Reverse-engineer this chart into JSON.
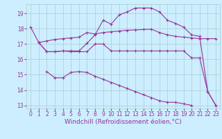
{
  "title": "",
  "xlabel": "Windchill (Refroidissement éolien,°C)",
  "bg_color": "#cceeff",
  "line_color": "#993399",
  "grid_color": "#aacccc",
  "xlim": [
    -0.5,
    23.5
  ],
  "ylim": [
    12.8,
    19.6
  ],
  "yticks": [
    13,
    14,
    15,
    16,
    17,
    18,
    19
  ],
  "xticks": [
    0,
    1,
    2,
    3,
    4,
    5,
    6,
    7,
    8,
    9,
    10,
    11,
    12,
    13,
    14,
    15,
    16,
    17,
    18,
    19,
    20,
    21,
    22,
    23
  ],
  "line1_x": [
    0,
    1,
    2,
    3,
    4,
    5,
    6,
    7,
    8,
    9,
    10,
    11,
    12,
    13,
    14,
    15,
    16,
    17,
    18,
    19,
    20,
    21,
    22,
    23
  ],
  "line1_y": [
    18.1,
    17.1,
    17.2,
    17.3,
    17.35,
    17.4,
    17.45,
    17.75,
    17.65,
    17.75,
    17.8,
    17.85,
    17.9,
    17.92,
    17.95,
    17.97,
    17.75,
    17.6,
    17.5,
    17.45,
    17.4,
    17.35,
    17.35,
    17.35
  ],
  "line2_x": [
    1,
    2,
    3,
    4,
    5,
    6,
    7,
    8,
    9,
    10,
    11,
    12,
    13,
    14,
    15,
    16,
    17,
    18,
    19,
    20,
    21,
    22,
    23
  ],
  "line2_y": [
    17.1,
    16.5,
    16.5,
    16.55,
    16.5,
    16.5,
    16.5,
    17.0,
    17.0,
    16.55,
    16.55,
    16.55,
    16.55,
    16.55,
    16.55,
    16.55,
    16.55,
    16.55,
    16.55,
    16.1,
    16.1,
    13.9,
    13.0
  ],
  "line3_x": [
    1,
    2,
    3,
    4,
    5,
    6,
    7,
    8,
    9,
    10,
    11,
    12,
    13,
    14,
    15,
    16,
    17,
    18,
    19,
    20,
    21,
    22,
    23
  ],
  "line3_y": [
    17.1,
    16.5,
    16.5,
    16.55,
    16.55,
    16.55,
    17.05,
    17.6,
    18.55,
    18.3,
    18.9,
    19.1,
    19.35,
    19.35,
    19.35,
    19.1,
    18.55,
    18.35,
    18.1,
    17.6,
    17.5,
    13.9,
    13.0
  ],
  "line4_x": [
    2,
    3,
    4,
    5,
    6,
    7,
    8,
    9,
    10,
    11,
    12,
    13,
    14,
    15,
    16,
    17,
    18,
    19,
    20
  ],
  "line4_y": [
    15.2,
    14.8,
    14.8,
    15.15,
    15.2,
    15.15,
    14.9,
    14.7,
    14.5,
    14.3,
    14.1,
    13.9,
    13.7,
    13.5,
    13.3,
    13.2,
    13.2,
    13.1,
    13.0
  ],
  "tick_fontsize": 5.5,
  "label_fontsize": 6.5
}
